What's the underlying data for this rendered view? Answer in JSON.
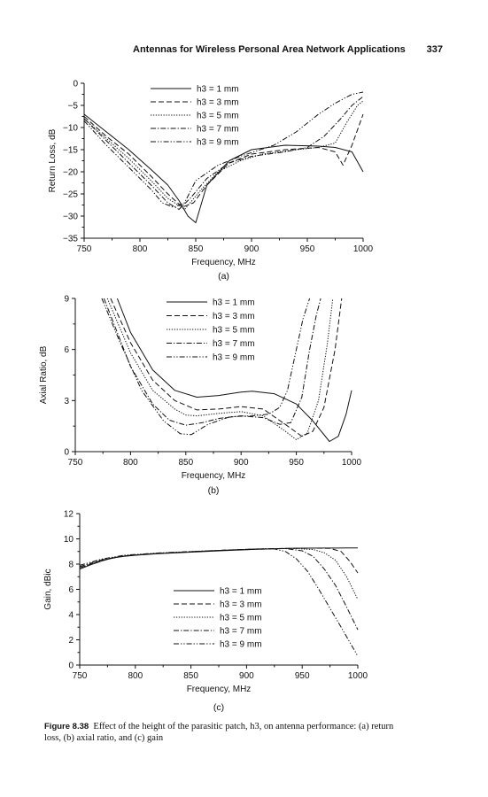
{
  "header": {
    "running_title": "Antennas for Wireless Personal Area Network Applications",
    "page_number": "337"
  },
  "caption": {
    "label": "Figure 8.38",
    "text": "Effect of the height of the parasitic patch, h3, on antenna performance: (a) return loss, (b) axial ratio, and (c) gain"
  },
  "chart_data": [
    {
      "id": "a",
      "type": "line",
      "panel_label": "(a)",
      "xlabel": "Frequency, MHz",
      "ylabel": "Return Loss, dB",
      "xlim": [
        750,
        1000
      ],
      "ylim": [
        -35,
        0
      ],
      "xticks": [
        750,
        800,
        850,
        900,
        950,
        1000
      ],
      "yticks": [
        0,
        -5,
        -10,
        -15,
        -20,
        -25,
        -30,
        -35
      ],
      "legend_position": "top-center",
      "series": [
        {
          "name": "h3 = 1 mm",
          "dash": "solid",
          "x": [
            750,
            770,
            790,
            810,
            825,
            835,
            843,
            850,
            860,
            880,
            900,
            930,
            960,
            975,
            990,
            1000
          ],
          "y": [
            -7,
            -11,
            -15,
            -19.5,
            -23,
            -26.5,
            -30,
            -31.5,
            -23,
            -17.5,
            -15,
            -14,
            -14.2,
            -14.5,
            -15.5,
            -20
          ]
        },
        {
          "name": "h3 = 3 mm",
          "dash": "dash",
          "x": [
            750,
            770,
            790,
            810,
            825,
            838,
            848,
            860,
            880,
            900,
            930,
            960,
            975,
            982,
            990,
            1000
          ],
          "y": [
            -7.5,
            -12,
            -16,
            -21,
            -25,
            -28,
            -27,
            -23,
            -18,
            -16,
            -15,
            -14.5,
            -15.5,
            -18.5,
            -14,
            -7
          ]
        },
        {
          "name": "h3 = 5 mm",
          "dash": "dot",
          "x": [
            750,
            770,
            790,
            810,
            825,
            840,
            855,
            870,
            890,
            910,
            940,
            960,
            975,
            985,
            995,
            1000
          ],
          "y": [
            -8,
            -12.5,
            -17,
            -22,
            -26,
            -28.5,
            -24,
            -20,
            -17.5,
            -16,
            -15,
            -14.5,
            -13.5,
            -9,
            -5,
            -4
          ]
        },
        {
          "name": "h3 = 7 mm",
          "dash": "dashdot",
          "x": [
            750,
            770,
            790,
            810,
            825,
            835,
            845,
            860,
            880,
            900,
            930,
            950,
            965,
            980,
            990,
            1000
          ],
          "y": [
            -8,
            -13,
            -18,
            -23,
            -27,
            -28.5,
            -26,
            -21.5,
            -18,
            -16.5,
            -15.5,
            -14.5,
            -12,
            -8,
            -5,
            -3
          ]
        },
        {
          "name": "h3 = 9 mm",
          "dash": "dashdotdot",
          "x": [
            750,
            770,
            790,
            810,
            820,
            830,
            840,
            850,
            870,
            890,
            920,
            940,
            960,
            975,
            990,
            1000
          ],
          "y": [
            -8.5,
            -14,
            -19,
            -24,
            -27,
            -28,
            -27,
            -22,
            -18.5,
            -16.5,
            -14,
            -11,
            -7,
            -4.5,
            -2.5,
            -2
          ]
        }
      ]
    },
    {
      "id": "b",
      "type": "line",
      "panel_label": "(b)",
      "xlabel": "Frequency, MHz",
      "ylabel": "Axial Ratio, dB",
      "xlim": [
        750,
        1000
      ],
      "ylim": [
        0,
        9
      ],
      "xticks": [
        750,
        800,
        850,
        900,
        950,
        1000
      ],
      "yticks": [
        0,
        3,
        6,
        9
      ],
      "legend_position": "top-center",
      "series": [
        {
          "name": "h3 = 1 mm",
          "dash": "solid",
          "x": [
            788,
            800,
            820,
            840,
            860,
            880,
            900,
            910,
            930,
            950,
            965,
            980,
            988,
            995,
            1000
          ],
          "y": [
            9,
            7,
            4.8,
            3.6,
            3.2,
            3.3,
            3.5,
            3.55,
            3.4,
            2.8,
            1.8,
            0.6,
            0.9,
            2.2,
            3.6
          ]
        },
        {
          "name": "h3 = 3 mm",
          "dash": "dash",
          "x": [
            782,
            800,
            820,
            840,
            860,
            880,
            900,
            920,
            940,
            955,
            965,
            975,
            985,
            991
          ],
          "y": [
            9,
            6.4,
            4.2,
            3,
            2.45,
            2.5,
            2.65,
            2.5,
            1.6,
            0.9,
            1.2,
            2.6,
            6,
            9
          ]
        },
        {
          "name": "h3 = 5 mm",
          "dash": "dot",
          "x": [
            779,
            800,
            820,
            840,
            850,
            860,
            880,
            900,
            920,
            940,
            950,
            960,
            970,
            978,
            983
          ],
          "y": [
            9,
            5.8,
            3.6,
            2.5,
            2.15,
            2.1,
            2.25,
            2.35,
            2.1,
            1.2,
            0.7,
            1.1,
            3,
            6.3,
            9
          ]
        },
        {
          "name": "h3 = 7 mm",
          "dash": "dashdot",
          "x": [
            776,
            800,
            820,
            835,
            850,
            865,
            880,
            900,
            920,
            935,
            945,
            955,
            962,
            968,
            972
          ],
          "y": [
            9,
            5,
            2.8,
            1.85,
            1.55,
            1.7,
            1.95,
            2.1,
            2,
            1.6,
            1.7,
            3.2,
            6,
            8,
            9
          ]
        },
        {
          "name": "h3 = 9 mm",
          "dash": "dashdotdot",
          "x": [
            774,
            790,
            810,
            830,
            845,
            855,
            870,
            890,
            910,
            925,
            935,
            942,
            950,
            956,
            962
          ],
          "y": [
            9,
            6.5,
            3.6,
            1.8,
            1.05,
            1.0,
            1.6,
            2.05,
            2.1,
            2.2,
            2.6,
            3.6,
            6,
            7.8,
            9
          ]
        }
      ]
    },
    {
      "id": "c",
      "type": "line",
      "panel_label": "(c)",
      "xlabel": "Frequency, MHz",
      "ylabel": "Gain, dBic",
      "xlim": [
        750,
        1000
      ],
      "ylim": [
        0,
        12
      ],
      "xticks": [
        750,
        800,
        850,
        900,
        950,
        1000
      ],
      "yticks": [
        0,
        2,
        4,
        6,
        8,
        10,
        12
      ],
      "legend_position": "center",
      "series": [
        {
          "name": "h3 = 1 mm",
          "dash": "solid",
          "x": [
            750,
            760,
            770,
            780,
            790,
            800,
            820,
            850,
            880,
            910,
            930,
            950,
            970,
            990,
            1000
          ],
          "y": [
            7.6,
            7.95,
            8.25,
            8.5,
            8.62,
            8.7,
            8.82,
            8.95,
            9.07,
            9.18,
            9.23,
            9.26,
            9.27,
            9.28,
            9.28
          ]
        },
        {
          "name": "h3 = 3 mm",
          "dash": "dash",
          "x": [
            750,
            770,
            790,
            820,
            850,
            880,
            910,
            940,
            960,
            975,
            985,
            993,
            1000
          ],
          "y": [
            7.7,
            8.3,
            8.65,
            8.85,
            8.98,
            9.1,
            9.2,
            9.25,
            9.26,
            9.25,
            9,
            8.2,
            7.3
          ]
        },
        {
          "name": "h3 = 5 mm",
          "dash": "dot",
          "x": [
            750,
            770,
            790,
            820,
            850,
            880,
            910,
            940,
            960,
            970,
            980,
            990,
            1000
          ],
          "y": [
            7.7,
            8.3,
            8.65,
            8.85,
            8.98,
            9.1,
            9.2,
            9.25,
            9.15,
            8.9,
            8.3,
            7,
            5.2
          ]
        },
        {
          "name": "h3 = 7 mm",
          "dash": "dashdot",
          "x": [
            750,
            770,
            790,
            820,
            850,
            880,
            910,
            935,
            950,
            960,
            970,
            980,
            990,
            1000
          ],
          "y": [
            7.8,
            8.35,
            8.65,
            8.85,
            8.98,
            9.1,
            9.2,
            9.23,
            9.05,
            8.6,
            7.6,
            6.3,
            4.6,
            2.8
          ]
        },
        {
          "name": "h3 = 9 mm",
          "dash": "dashdotdot",
          "x": [
            750,
            770,
            790,
            820,
            850,
            880,
            910,
            925,
            935,
            945,
            955,
            965,
            975,
            985,
            1000
          ],
          "y": [
            7.9,
            8.4,
            8.7,
            8.88,
            9,
            9.1,
            9.18,
            9.2,
            9.0,
            8.4,
            7.4,
            6,
            4.5,
            3,
            0.7
          ]
        }
      ]
    }
  ]
}
